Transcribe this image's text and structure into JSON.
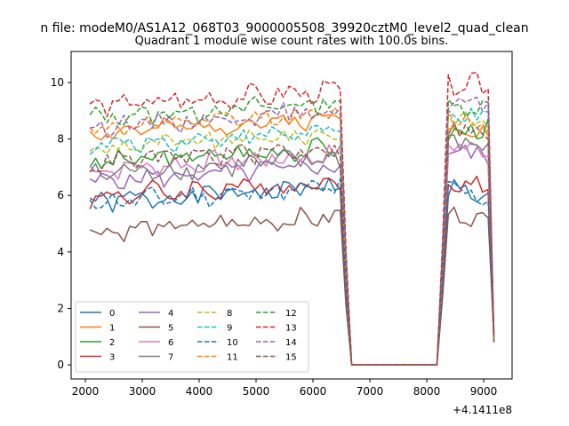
{
  "suptitle": "n file: modeM0/AS1A12_068T03_9000005508_39920cztM0_level2_quad_clean",
  "chart_data": {
    "type": "line",
    "title": "Quadrant 1 module wise count rates with 100.0s bins.",
    "xlabel": "",
    "ylabel": "",
    "x_offset_label": "+4.1411e8",
    "xlim": [
      1750,
      9500
    ],
    "ylim": [
      -0.5,
      11.1
    ],
    "xticks": [
      2000,
      3000,
      4000,
      5000,
      6000,
      7000,
      8000,
      9000
    ],
    "xtick_labels": [
      "2000",
      "3000",
      "4000",
      "5000",
      "6000",
      "7000",
      "8000",
      "9000"
    ],
    "yticks": [
      0,
      2,
      4,
      6,
      8,
      10
    ],
    "ytick_labels": [
      "0",
      "2",
      "4",
      "6",
      "8",
      "10"
    ],
    "grid": false,
    "legend_location": "lower-left",
    "legend_columns": 4,
    "segments": [
      {
        "x_start": 2080,
        "x_end": 6480,
        "step": 100
      },
      {
        "x_start": 6580,
        "x_end": 6680,
        "step": 100
      },
      {
        "x_start": 8180,
        "x_end": 9180,
        "step": 100
      }
    ],
    "series": [
      {
        "name": "0",
        "color": "#1f77b4",
        "dash": "solid",
        "base": 5.75,
        "amp": 0.32,
        "seed": 1,
        "post_level": 6.35,
        "post_drift": -0.5
      },
      {
        "name": "1",
        "color": "#ff7f0e",
        "dash": "solid",
        "base": 8.2,
        "amp": 0.25,
        "seed": 2,
        "post_level": 8.6,
        "post_drift": -0.4
      },
      {
        "name": "2",
        "color": "#2ca02c",
        "dash": "solid",
        "base": 7.15,
        "amp": 0.3,
        "seed": 3,
        "post_level": 8.2,
        "post_drift": 0.2
      },
      {
        "name": "3",
        "color": "#d62728",
        "dash": "solid",
        "base": 5.95,
        "amp": 0.35,
        "seed": 4,
        "post_level": 6.6,
        "post_drift": -0.4
      },
      {
        "name": "4",
        "color": "#9467bd",
        "dash": "solid",
        "base": 6.5,
        "amp": 0.3,
        "seed": 5,
        "post_level": 7.6,
        "post_drift": -0.2
      },
      {
        "name": "5",
        "color": "#8c564b",
        "dash": "solid",
        "base": 4.7,
        "amp": 0.28,
        "seed": 6,
        "post_level": 5.4,
        "post_drift": -0.3
      },
      {
        "name": "6",
        "color": "#e377c2",
        "dash": "solid",
        "base": 6.9,
        "amp": 0.3,
        "seed": 7,
        "post_level": 7.8,
        "post_drift": -0.2
      },
      {
        "name": "7",
        "color": "#7f7f7f",
        "dash": "solid",
        "base": 6.75,
        "amp": 0.35,
        "seed": 8,
        "post_level": 8.1,
        "post_drift": -0.5
      },
      {
        "name": "8",
        "color": "#bcbd22",
        "dash": "dashed",
        "base": 7.65,
        "amp": 0.28,
        "seed": 9,
        "post_level": 8.8,
        "post_drift": -0.3
      },
      {
        "name": "9",
        "color": "#17becf",
        "dash": "dashed",
        "base": 7.75,
        "amp": 0.25,
        "seed": 10,
        "post_level": 8.9,
        "post_drift": -0.2
      },
      {
        "name": "10",
        "color": "#1f77b4",
        "dash": "dashed",
        "base": 5.75,
        "amp": 0.3,
        "seed": 11,
        "post_level": 6.3,
        "post_drift": -0.5
      },
      {
        "name": "11",
        "color": "#ff7f0e",
        "dash": "dashed",
        "base": 8.35,
        "amp": 0.25,
        "seed": 12,
        "post_level": 8.8,
        "post_drift": -0.3
      },
      {
        "name": "12",
        "color": "#2ca02c",
        "dash": "dashed",
        "base": 8.75,
        "amp": 0.28,
        "seed": 13,
        "post_level": 9.1,
        "post_drift": 0.1
      },
      {
        "name": "13",
        "color": "#d62728",
        "dash": "dashed",
        "base": 9.15,
        "amp": 0.32,
        "seed": 14,
        "post_level": 9.9,
        "post_drift": 0.1
      },
      {
        "name": "14",
        "color": "#9467bd",
        "dash": "dashed",
        "base": 8.45,
        "amp": 0.3,
        "seed": 15,
        "post_level": 9.4,
        "post_drift": -0.3
      },
      {
        "name": "15",
        "color": "#8c564b",
        "dash": "dashed",
        "base": 7.15,
        "amp": 0.3,
        "seed": 16,
        "post_level": 8.4,
        "post_drift": -0.3
      }
    ]
  }
}
